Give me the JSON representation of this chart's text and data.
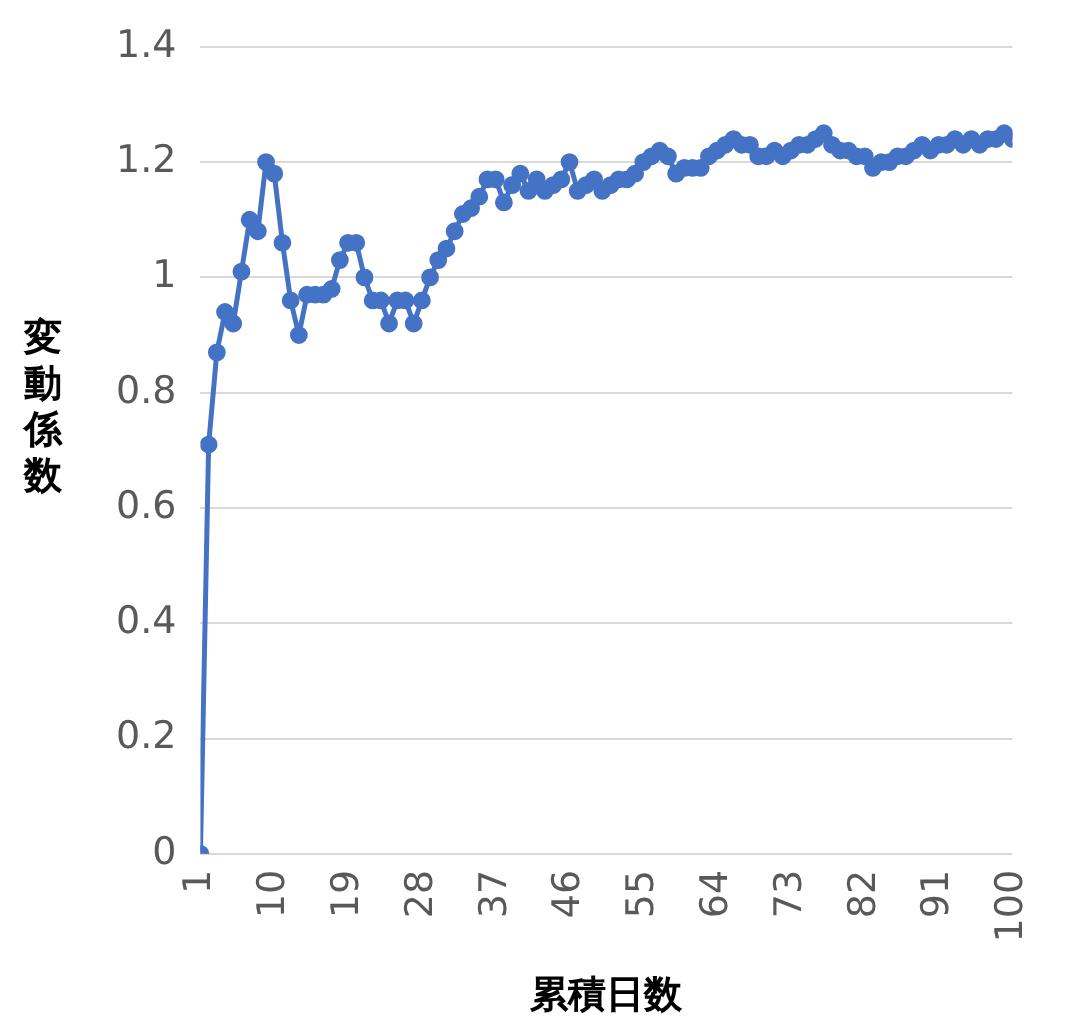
{
  "chart_data": {
    "type": "line",
    "xlabel": "累積日数",
    "ylabel": "変動係数",
    "x": [
      1,
      2,
      3,
      4,
      5,
      6,
      7,
      8,
      9,
      10,
      11,
      12,
      13,
      14,
      15,
      16,
      17,
      18,
      19,
      20,
      21,
      22,
      23,
      24,
      25,
      26,
      27,
      28,
      29,
      30,
      31,
      32,
      33,
      34,
      35,
      36,
      37,
      38,
      39,
      40,
      41,
      42,
      43,
      44,
      45,
      46,
      47,
      48,
      49,
      50,
      51,
      52,
      53,
      54,
      55,
      56,
      57,
      58,
      59,
      60,
      61,
      62,
      63,
      64,
      65,
      66,
      67,
      68,
      69,
      70,
      71,
      72,
      73,
      74,
      75,
      76,
      77,
      78,
      79,
      80,
      81,
      82,
      83,
      84,
      85,
      86,
      87,
      88,
      89,
      90,
      91,
      92,
      93,
      94,
      95,
      96,
      97,
      98,
      99,
      100
    ],
    "series": [
      {
        "color": "#4472c4",
        "values": [
          0,
          0.71,
          0.87,
          0.94,
          0.92,
          1.01,
          1.1,
          1.08,
          1.2,
          1.18,
          1.06,
          0.96,
          0.9,
          0.97,
          0.97,
          0.97,
          0.98,
          1.03,
          1.06,
          1.06,
          1.0,
          0.96,
          0.96,
          0.92,
          0.96,
          0.96,
          0.92,
          0.96,
          1.0,
          1.03,
          1.05,
          1.08,
          1.11,
          1.12,
          1.14,
          1.17,
          1.17,
          1.13,
          1.16,
          1.18,
          1.15,
          1.17,
          1.15,
          1.16,
          1.17,
          1.2,
          1.15,
          1.16,
          1.17,
          1.15,
          1.16,
          1.17,
          1.17,
          1.18,
          1.2,
          1.21,
          1.22,
          1.21,
          1.18,
          1.19,
          1.19,
          1.19,
          1.21,
          1.22,
          1.23,
          1.24,
          1.23,
          1.23,
          1.21,
          1.21,
          1.22,
          1.21,
          1.22,
          1.23,
          1.23,
          1.24,
          1.25,
          1.23,
          1.22,
          1.22,
          1.21,
          1.21,
          1.19,
          1.2,
          1.2,
          1.21,
          1.21,
          1.22,
          1.23,
          1.22,
          1.23,
          1.23,
          1.24,
          1.23,
          1.24,
          1.23,
          1.24,
          1.24,
          1.25,
          1.24
        ]
      }
    ],
    "xlim": [
      1,
      100
    ],
    "xticks": [
      1,
      10,
      19,
      28,
      37,
      46,
      55,
      64,
      73,
      82,
      91,
      100
    ],
    "ylim": [
      0,
      1.4
    ],
    "yticks": [
      0,
      0.2,
      0.4,
      0.6,
      0.8,
      1,
      1.2,
      1.4
    ],
    "grid": "y",
    "legend": false,
    "marker": "circle",
    "line_style": "solid"
  }
}
